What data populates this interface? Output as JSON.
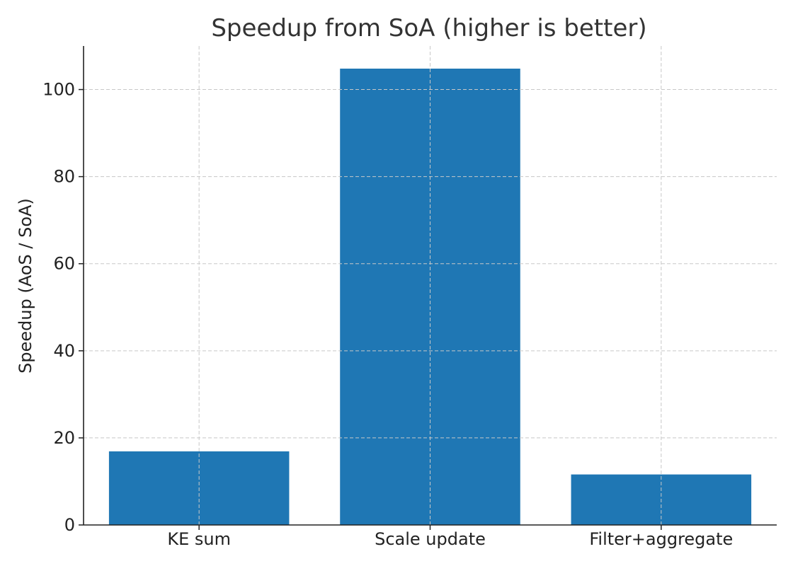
{
  "chart_data": {
    "type": "bar",
    "title": "Speedup from SoA (higher is better)",
    "xlabel": "",
    "ylabel": "Speedup (AoS / SoA)",
    "categories": [
      "KE sum",
      "Scale update",
      "Filter+aggregate"
    ],
    "values": [
      16.9,
      104.8,
      11.6
    ],
    "ylim": [
      0,
      110
    ],
    "yticks": [
      0,
      20,
      40,
      60,
      80,
      100
    ],
    "grid": true,
    "legend": "none",
    "bar_color": "#1f77b4",
    "grid_color": "#c8c8c8",
    "axis_color": "#222222"
  }
}
